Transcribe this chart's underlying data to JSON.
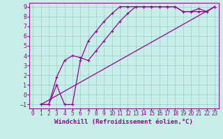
{
  "background_color": "#c8eee8",
  "line_color": "#990099",
  "grid_color": "#9ecece",
  "xlabel": "Windchill (Refroidissement éolien,°C)",
  "xlabel_fontsize": 6.5,
  "xtick_fontsize": 5.5,
  "ytick_fontsize": 6.0,
  "xlim": [
    -0.5,
    23.5
  ],
  "ylim": [
    -1.4,
    9.4
  ],
  "xticks": [
    0,
    1,
    2,
    3,
    4,
    5,
    6,
    7,
    8,
    9,
    10,
    11,
    12,
    13,
    14,
    15,
    16,
    17,
    18,
    19,
    20,
    21,
    22,
    23
  ],
  "yticks": [
    -1,
    0,
    1,
    2,
    3,
    4,
    5,
    6,
    7,
    8,
    9
  ],
  "line1": {
    "x": [
      1,
      2,
      3,
      4,
      5,
      6,
      7,
      8,
      9,
      10,
      11,
      12,
      13,
      14,
      15,
      16,
      17,
      18,
      19,
      20,
      21,
      22,
      23
    ],
    "y": [
      -1,
      -1,
      1,
      -1,
      -1,
      3.5,
      5.5,
      6.5,
      7.5,
      8.3,
      9.0,
      9.0,
      9.0,
      9.0,
      9.0,
      9.0,
      9.0,
      9.0,
      8.5,
      8.5,
      8.8,
      8.5,
      9.0
    ]
  },
  "line2": {
    "x": [
      1,
      2,
      3,
      4,
      5,
      6,
      7,
      8,
      9,
      10,
      11,
      12,
      13,
      14,
      15,
      16,
      17,
      18,
      19,
      20,
      21,
      22,
      23
    ],
    "y": [
      -1,
      -1,
      1.8,
      3.5,
      4.0,
      3.8,
      3.5,
      4.5,
      5.5,
      6.5,
      7.5,
      8.3,
      9.0,
      9.0,
      9.0,
      9.0,
      9.0,
      9.0,
      8.5,
      8.5,
      8.5,
      8.5,
      9.0
    ]
  },
  "line3": {
    "x": [
      1,
      23
    ],
    "y": [
      -1,
      9.0
    ]
  }
}
